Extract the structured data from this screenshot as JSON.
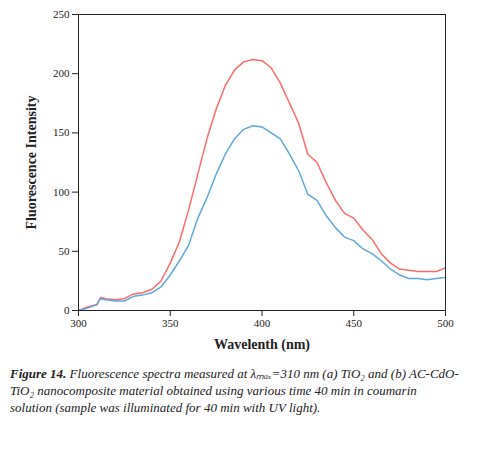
{
  "chart_data": {
    "type": "line",
    "caption": "Figure 14. Fluorescence spectra measured at λₘₐₓ=310 nm (a) TiO₂ and (b) AC-CdO-TiO₂ nanocomposite material obtained using various time 40 min in coumarin solution (sample was illuminated for 40 min with UV light).",
    "x_label": "Wavelenth (nm)",
    "y_label": "Fluorescence Intensity",
    "x": [
      300,
      305,
      310,
      312,
      315,
      320,
      325,
      330,
      335,
      340,
      345,
      350,
      355,
      360,
      365,
      370,
      375,
      380,
      385,
      390,
      395,
      400,
      405,
      410,
      415,
      420,
      425,
      430,
      435,
      440,
      445,
      450,
      455,
      460,
      465,
      470,
      475,
      480,
      485,
      490,
      495,
      500
    ],
    "series": [
      {
        "color": "#ff6b6b",
        "values": [
          0,
          3,
          5,
          11,
          10,
          9,
          10,
          14,
          15,
          18,
          25,
          40,
          58,
          85,
          115,
          145,
          170,
          190,
          203,
          210,
          212,
          211,
          205,
          192,
          175,
          158,
          132,
          125,
          108,
          93,
          82,
          78,
          68,
          60,
          48,
          40,
          35,
          34,
          33,
          33,
          33,
          36
        ]
      },
      {
        "color": "#5fa8dc",
        "values": [
          0,
          2,
          5,
          10,
          9,
          8,
          8,
          12,
          13,
          15,
          20,
          30,
          42,
          55,
          78,
          95,
          115,
          132,
          145,
          153,
          156,
          155,
          150,
          145,
          132,
          118,
          98,
          93,
          80,
          70,
          62,
          59,
          52,
          48,
          42,
          35,
          30,
          27,
          27,
          26,
          27,
          28
        ]
      }
    ],
    "xlim": [
      300,
      500
    ],
    "xticks": [
      300,
      350,
      400,
      450,
      500
    ],
    "ylim": [
      0,
      250
    ],
    "yticks": [
      0,
      50,
      100,
      150,
      200,
      250
    ],
    "grid": false
  }
}
